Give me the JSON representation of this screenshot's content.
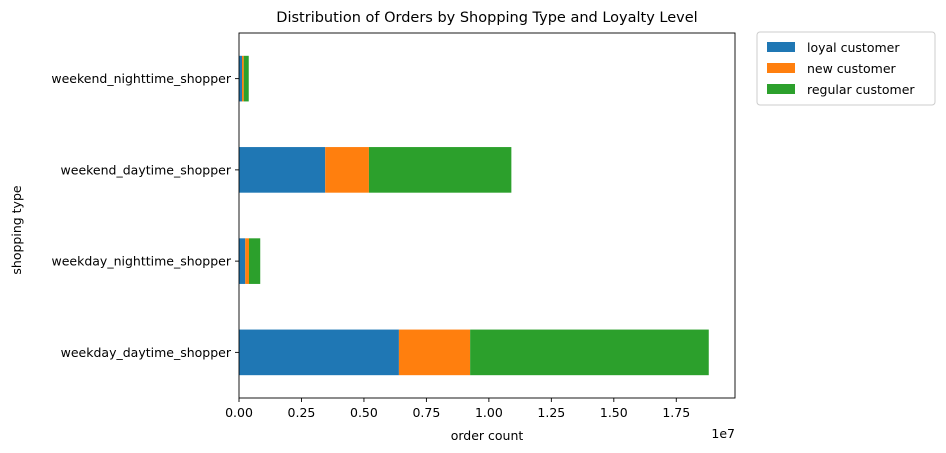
{
  "chart_data": {
    "type": "bar",
    "orientation": "horizontal",
    "stacked": true,
    "title": "Distribution of Orders by Shopping Type and Loyalty Level",
    "xlabel": "order count",
    "ylabel": "shopping type",
    "x_scale_label": "1e7",
    "xlim": [
      0,
      19850000
    ],
    "x_ticks": [
      0,
      2500000,
      5000000,
      7500000,
      10000000,
      12500000,
      15000000,
      17500000
    ],
    "x_tick_labels": [
      "0.00",
      "0.25",
      "0.50",
      "0.75",
      "1.00",
      "1.25",
      "1.50",
      "1.75"
    ],
    "categories": [
      "weekday_daytime_shopper",
      "weekday_nighttime_shopper",
      "weekend_daytime_shopper",
      "weekend_nighttime_shopper"
    ],
    "series": [
      {
        "name": "loyal customer",
        "color": "#1f77b4",
        "values": [
          6400000,
          250000,
          3450000,
          120000
        ]
      },
      {
        "name": "new customer",
        "color": "#ff7f0e",
        "values": [
          2850000,
          150000,
          1750000,
          70000
        ]
      },
      {
        "name": "regular customer",
        "color": "#2ca02c",
        "values": [
          9550000,
          450000,
          5700000,
          200000
        ]
      }
    ],
    "legend": {
      "placement": "outside-upper-right"
    },
    "grid": false
  }
}
